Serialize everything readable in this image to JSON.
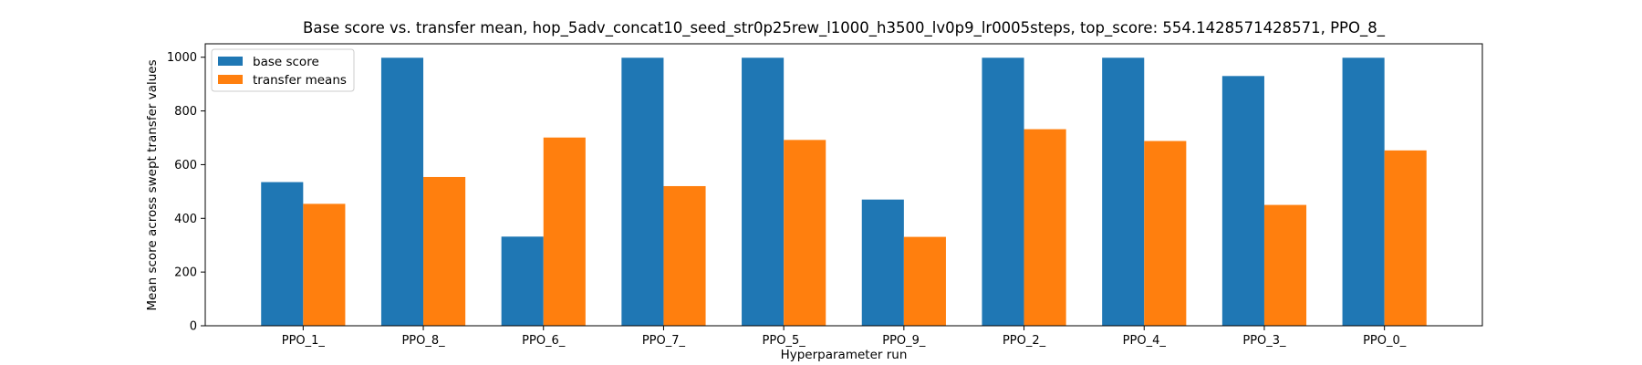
{
  "chart_data": {
    "type": "bar",
    "title": "Base score vs. transfer mean, hop_5adv_concat10_seed_str0p25rew_l1000_h3500_lv0p9_lr0005steps, top_score: 554.1428571428571, PPO_8_",
    "xlabel": "Hyperparameter run",
    "ylabel": "Mean score across swept transfer values",
    "categories": [
      "PPO_1_",
      "PPO_8_",
      "PPO_6_",
      "PPO_7_",
      "PPO_5_",
      "PPO_9_",
      "PPO_2_",
      "PPO_4_",
      "PPO_3_",
      "PPO_0_"
    ],
    "series": [
      {
        "name": "base score",
        "color": "#1f77b4",
        "values": [
          535,
          998,
          332,
          998,
          998,
          470,
          998,
          998,
          930,
          998
        ]
      },
      {
        "name": "transfer means",
        "color": "#ff7f0e",
        "values": [
          454,
          554,
          701,
          520,
          692,
          331,
          732,
          688,
          450,
          653
        ]
      }
    ],
    "ylim": [
      0,
      1050
    ],
    "yticks": [
      0,
      200,
      400,
      600,
      800,
      1000
    ],
    "grid": false,
    "legend_position": "top-left"
  }
}
